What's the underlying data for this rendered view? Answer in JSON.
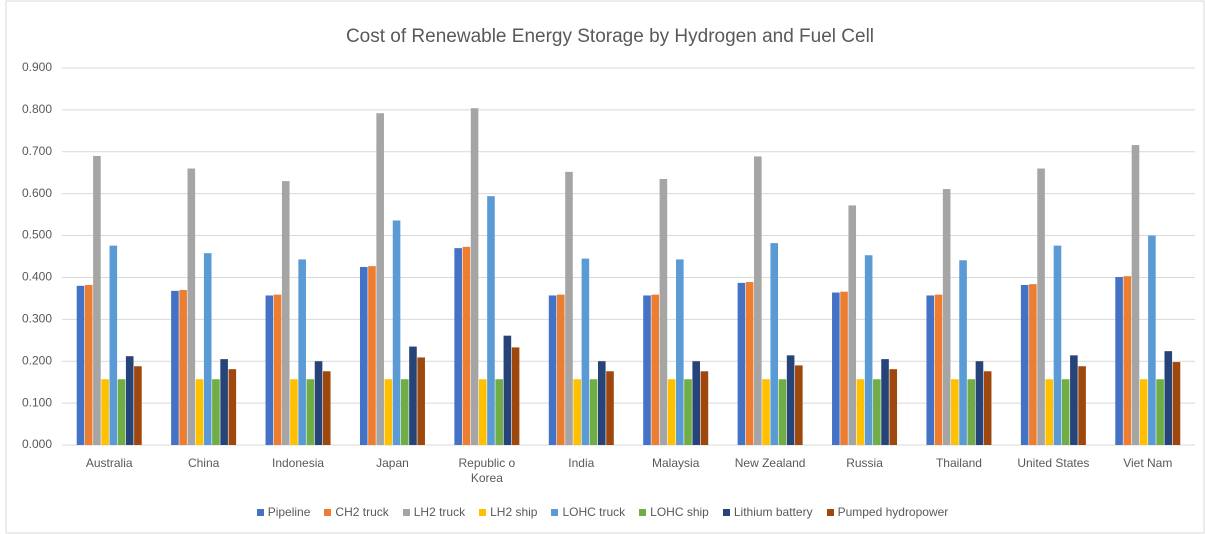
{
  "chart_data": {
    "type": "bar",
    "title": "Cost of Renewable Energy Storage by Hydrogen and Fuel Cell",
    "categories": [
      "Australia",
      "China",
      "Indonesia",
      "Japan",
      "Republic o Korea",
      "India",
      "Malaysia",
      "New Zealand",
      "Russia",
      "Thailand",
      "United States",
      "Viet Nam"
    ],
    "series": [
      {
        "name": "Pipeline",
        "color": "#4472c4",
        "values": [
          0.38,
          0.368,
          0.357,
          0.425,
          0.47,
          0.357,
          0.357,
          0.387,
          0.364,
          0.357,
          0.382,
          0.401
        ]
      },
      {
        "name": "CH2 truck",
        "color": "#ed7d31",
        "values": [
          0.382,
          0.37,
          0.359,
          0.427,
          0.473,
          0.359,
          0.359,
          0.389,
          0.366,
          0.359,
          0.384,
          0.403
        ]
      },
      {
        "name": "LH2 truck",
        "color": "#a5a5a5",
        "values": [
          0.69,
          0.66,
          0.63,
          0.792,
          0.804,
          0.652,
          0.635,
          0.689,
          0.572,
          0.611,
          0.66,
          0.716
        ]
      },
      {
        "name": "LH2 ship",
        "color": "#ffc000",
        "values": [
          0.157,
          0.157,
          0.157,
          0.157,
          0.157,
          0.157,
          0.157,
          0.157,
          0.157,
          0.157,
          0.157,
          0.157
        ]
      },
      {
        "name": "LOHC truck",
        "color": "#5b9bd5",
        "values": [
          0.476,
          0.458,
          0.443,
          0.536,
          0.594,
          0.445,
          0.443,
          0.482,
          0.453,
          0.441,
          0.476,
          0.5
        ]
      },
      {
        "name": "LOHC ship",
        "color": "#70ad47",
        "values": [
          0.157,
          0.157,
          0.157,
          0.157,
          0.157,
          0.157,
          0.157,
          0.157,
          0.157,
          0.157,
          0.157,
          0.157
        ]
      },
      {
        "name": "Lithium battery",
        "color": "#264478",
        "values": [
          0.212,
          0.205,
          0.2,
          0.235,
          0.261,
          0.2,
          0.2,
          0.214,
          0.205,
          0.2,
          0.214,
          0.224
        ]
      },
      {
        "name": "Pumped hydropower",
        "color": "#9e480e",
        "values": [
          0.188,
          0.181,
          0.176,
          0.209,
          0.233,
          0.176,
          0.176,
          0.19,
          0.181,
          0.176,
          0.188,
          0.198
        ]
      }
    ],
    "ylim": [
      0,
      0.9
    ],
    "yticks": [
      {
        "value": 0,
        "label": "0.000"
      },
      {
        "value": 0.1,
        "label": "0.100"
      },
      {
        "value": 0.2,
        "label": "0.200"
      },
      {
        "value": 0.3,
        "label": "0.300"
      },
      {
        "value": 0.4,
        "label": "0.400"
      },
      {
        "value": 0.5,
        "label": "0.500"
      },
      {
        "value": 0.6,
        "label": "0.600"
      },
      {
        "value": 0.7,
        "label": "0.700"
      },
      {
        "value": 0.8,
        "label": "0.800"
      },
      {
        "value": 0.9,
        "label": "0.900"
      }
    ],
    "grid": true,
    "legend": "bottom"
  }
}
